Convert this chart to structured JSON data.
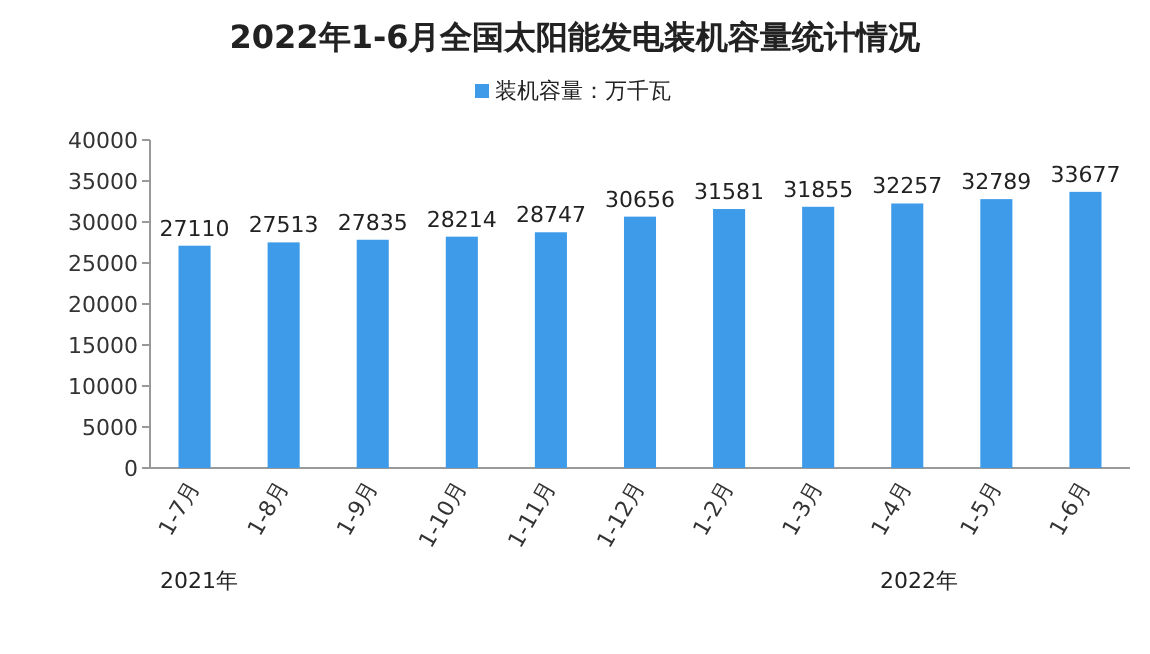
{
  "chart_data": {
    "type": "bar",
    "title": "2022年1-6月全国太阳能发电装机容量统计情况",
    "categories": [
      "1-7月",
      "1-8月",
      "1-9月",
      "1-10月",
      "1-11月",
      "1-12月",
      "1-2月",
      "1-3月",
      "1-4月",
      "1-5月",
      "1-6月"
    ],
    "series": [
      {
        "name": "装机容量：万千瓦",
        "color": "#3d9be9",
        "values": [
          27110,
          27513,
          27835,
          28214,
          28747,
          30656,
          31581,
          31855,
          32257,
          32789,
          33677
        ]
      }
    ],
    "ylim": [
      0,
      40000
    ],
    "yticks": [
      0,
      5000,
      10000,
      15000,
      20000,
      25000,
      30000,
      35000,
      40000
    ],
    "data_labels": true,
    "legend": "top",
    "annotations": [
      "2021年",
      "2022年"
    ]
  }
}
